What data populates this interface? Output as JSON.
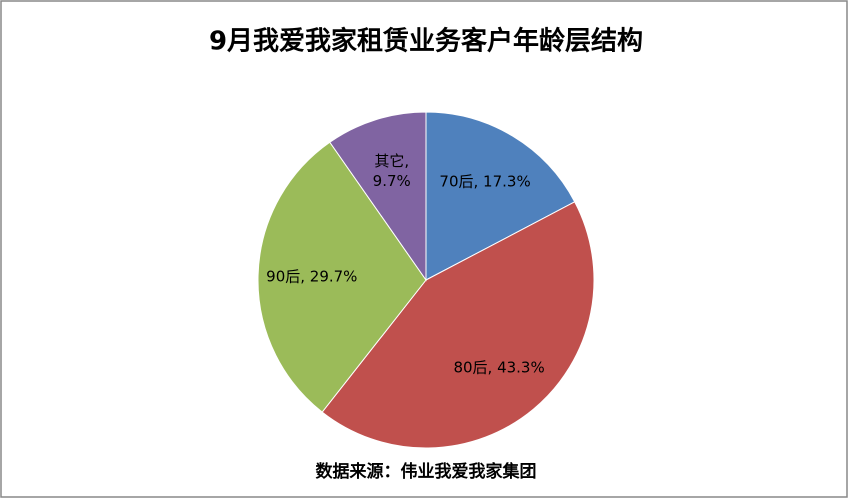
{
  "chart_data": {
    "type": "pie",
    "title": "9月我爱我家租赁业务客户年龄层结构",
    "values": [
      17.3,
      43.3,
      29.7,
      9.7
    ],
    "value_labels": [
      "70后, 17.3%",
      "80后, 43.3%",
      "90后, 29.7%",
      "其它, 9.7%"
    ],
    "colors": [
      "#4f81bd",
      "#c0504d",
      "#9bbb59",
      "#8064a2"
    ],
    "source": "数据来源：伟业我爱我家集团"
  }
}
